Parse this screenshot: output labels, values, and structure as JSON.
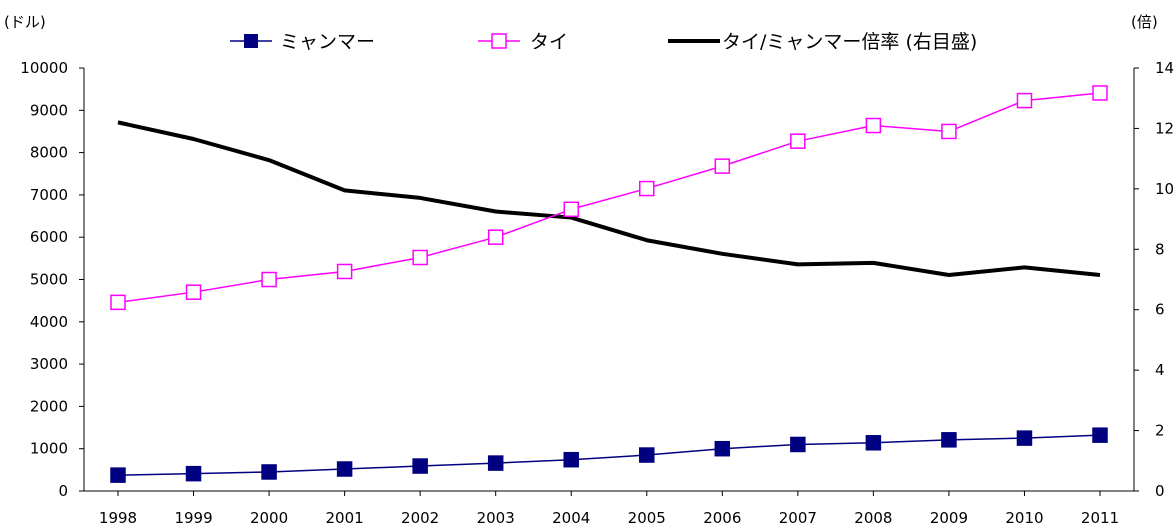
{
  "chart_data": {
    "type": "line",
    "categories": [
      "1998",
      "1999",
      "2000",
      "2001",
      "2002",
      "2003",
      "2004",
      "2005",
      "2006",
      "2007",
      "2008",
      "2009",
      "2010",
      "2011"
    ],
    "y_left": {
      "unit_label": "(ドル)",
      "lim": [
        0,
        10000
      ],
      "ticks": [
        0,
        1000,
        2000,
        3000,
        4000,
        5000,
        6000,
        7000,
        8000,
        9000,
        10000
      ]
    },
    "y_right": {
      "unit_label": "(倍)",
      "lim": [
        0,
        14
      ],
      "ticks": [
        0,
        2,
        4,
        6,
        8,
        10,
        12,
        14
      ]
    },
    "grid": false,
    "legend_position": "top",
    "series": [
      {
        "name": "ミャンマー",
        "axis": "left",
        "color": "#000080",
        "marker": "filled-square",
        "values": [
          375,
          410,
          450,
          520,
          590,
          660,
          740,
          850,
          1000,
          1100,
          1140,
          1210,
          1250,
          1320
        ]
      },
      {
        "name": "タイ",
        "axis": "left",
        "color": "#ff00ff",
        "marker": "open-square",
        "values": [
          4460,
          4700,
          5000,
          5190,
          5520,
          6000,
          6660,
          7150,
          7680,
          8270,
          8640,
          8500,
          9230,
          9410
        ]
      },
      {
        "name": "タイ/ミャンマー倍率 (右目盛)",
        "axis": "right",
        "color": "#000000",
        "marker": "none",
        "values": [
          12.2,
          11.65,
          10.95,
          9.95,
          9.7,
          9.25,
          9.05,
          8.3,
          7.85,
          7.5,
          7.55,
          7.15,
          7.4,
          7.15
        ]
      }
    ]
  }
}
